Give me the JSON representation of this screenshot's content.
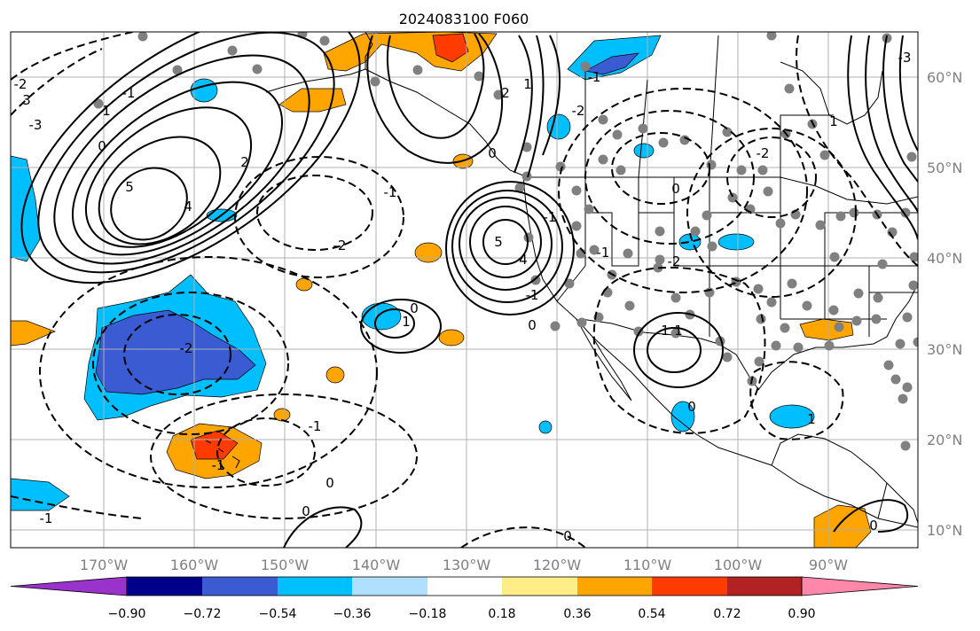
{
  "title": "2024083100 F060",
  "map": {
    "projection": "PlateCarree",
    "extent_lon": [
      -180,
      -80
    ],
    "extent_lat": [
      8,
      65
    ],
    "gridlines": true,
    "lon_ticks": [
      "170°W",
      "160°W",
      "150°W",
      "140°W",
      "130°W",
      "120°W",
      "110°W",
      "100°W",
      "90°W"
    ],
    "lat_ticks": [
      "60°N",
      "50°N",
      "40°N",
      "30°N",
      "20°N",
      "10°N"
    ],
    "contour_labels": [
      "5",
      "4",
      "3",
      "2",
      "1",
      "0",
      "-1",
      "-2",
      "-3",
      "2",
      "1",
      "0",
      "-1",
      "-2",
      "5",
      "4",
      "0",
      "1",
      "-1",
      "-2",
      "-1",
      "0",
      "1",
      "1",
      "-1",
      "-2",
      "0",
      "0",
      "-2",
      "-3",
      "0",
      "1",
      "1",
      "-1",
      "-2",
      "-1",
      "0",
      "-1",
      "0",
      "-1",
      "0"
    ],
    "station_marker_color": "#808080"
  },
  "colorbar": {
    "extend": "both",
    "colors": [
      "#9933cc",
      "#00008b",
      "#3a5bd1",
      "#00bfff",
      "#b0e0ff",
      "#ffffff",
      "#ffee88",
      "#ffa500",
      "#ff3b00",
      "#b22222",
      "#ff88aa"
    ],
    "tick_labels": [
      "−0.90",
      "−0.72",
      "−0.54",
      "−0.36",
      "−0.18",
      "0.18",
      "0.36",
      "0.54",
      "0.72",
      "0.90"
    ]
  }
}
